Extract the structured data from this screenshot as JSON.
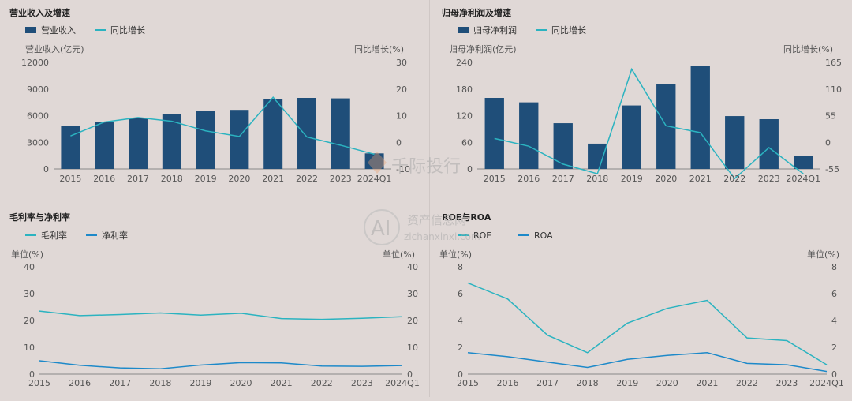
{
  "colors": {
    "bar": "#1f4e79",
    "line": "#2bb3c0",
    "line2": "#1d89c9",
    "axis": "#666666",
    "text": "#555555"
  },
  "watermark": {
    "logo_text": "千际投行",
    "sub_text": "资产信息网",
    "sub_url": "zichanxinxi.com",
    "mark": "AI"
  },
  "chart_data": [
    {
      "type": "bar",
      "title": "营业收入及增速",
      "categories": [
        "2015",
        "2016",
        "2017",
        "2018",
        "2019",
        "2020",
        "2021",
        "2022",
        "2023",
        "2024Q1"
      ],
      "series": [
        {
          "name": "营业收入",
          "type": "bar",
          "axis": "left",
          "values": [
            4850,
            5250,
            5750,
            6150,
            6550,
            6650,
            7850,
            8000,
            7950,
            1750
          ]
        },
        {
          "name": "同比增长",
          "type": "line",
          "axis": "right",
          "values": [
            2.4,
            7.6,
            9.3,
            7.9,
            4.3,
            2.2,
            16.9,
            2.0,
            -1.1,
            -4.5
          ]
        }
      ],
      "ylabel_left": "营业收入(亿元)",
      "ylabel_right": "同比增长(%)",
      "yticks_left": [
        "0",
        "3000",
        "6000",
        "9000",
        "12000"
      ],
      "yticks_right": [
        "-10",
        "0",
        "10",
        "20",
        "30"
      ],
      "ylim_left": [
        0,
        12000
      ],
      "ylim_right": [
        -10,
        30
      ],
      "legend": "top-left"
    },
    {
      "type": "bar",
      "title": "归母净利润及增速",
      "categories": [
        "2015",
        "2016",
        "2017",
        "2018",
        "2019",
        "2020",
        "2021",
        "2022",
        "2023",
        "2024Q1"
      ],
      "series": [
        {
          "name": "归母净利润",
          "type": "bar",
          "axis": "left",
          "values": [
            160,
            150,
            103,
            57,
            143,
            191,
            232,
            119,
            112,
            30
          ]
        },
        {
          "name": "同比增长",
          "type": "line",
          "axis": "right",
          "values": [
            8,
            -8,
            -45,
            -65,
            151,
            34,
            20,
            -75,
            -11,
            -65
          ]
        }
      ],
      "ylabel_left": "归母净利润(亿元)",
      "ylabel_right": "同比增长(%)",
      "yticks_left": [
        "0",
        "60",
        "120",
        "180",
        "240"
      ],
      "yticks_right": [
        "-55",
        "0",
        "55",
        "110",
        "165"
      ],
      "ylim_left": [
        0,
        240
      ],
      "ylim_right": [
        -55,
        165
      ],
      "legend": "top-left"
    },
    {
      "type": "line",
      "title": "毛利率与净利率",
      "categories": [
        "2015",
        "2016",
        "2017",
        "2018",
        "2019",
        "2020",
        "2021",
        "2022",
        "2023",
        "2024Q1"
      ],
      "series": [
        {
          "name": "毛利率",
          "color": "#2bb3c0",
          "values": [
            23.5,
            21.8,
            22.2,
            22.8,
            22.0,
            22.7,
            20.7,
            20.4,
            20.8,
            21.4
          ]
        },
        {
          "name": "净利率",
          "color": "#1d89c9",
          "values": [
            5.0,
            3.3,
            2.3,
            2.0,
            3.4,
            4.3,
            4.2,
            3.0,
            2.9,
            3.2
          ]
        }
      ],
      "ylabel_left": "单位(%)",
      "ylabel_right": "单位(%)",
      "yticks_left": [
        "0",
        "10",
        "20",
        "30",
        "40"
      ],
      "yticks_right": [
        "0",
        "10",
        "20",
        "30",
        "40"
      ],
      "ylim": [
        0,
        40
      ],
      "legend": "top-left"
    },
    {
      "type": "line",
      "title": "ROE与ROA",
      "categories": [
        "2015",
        "2016",
        "2017",
        "2018",
        "2019",
        "2020",
        "2021",
        "2022",
        "2023",
        "2024Q1"
      ],
      "series": [
        {
          "name": "ROE",
          "color": "#2bb3c0",
          "values": [
            6.8,
            5.6,
            2.9,
            1.6,
            3.8,
            4.9,
            5.5,
            2.7,
            2.5,
            0.7
          ]
        },
        {
          "name": "ROA",
          "color": "#1d89c9",
          "values": [
            1.6,
            1.3,
            0.9,
            0.5,
            1.1,
            1.4,
            1.6,
            0.8,
            0.7,
            0.2
          ]
        }
      ],
      "ylabel_left": "单位(%)",
      "ylabel_right": "单位(%)",
      "yticks_left": [
        "0",
        "2",
        "4",
        "6",
        "8"
      ],
      "yticks_right": [
        "0",
        "2",
        "4",
        "6",
        "8"
      ],
      "ylim": [
        0,
        8
      ],
      "legend": "top-left"
    }
  ]
}
